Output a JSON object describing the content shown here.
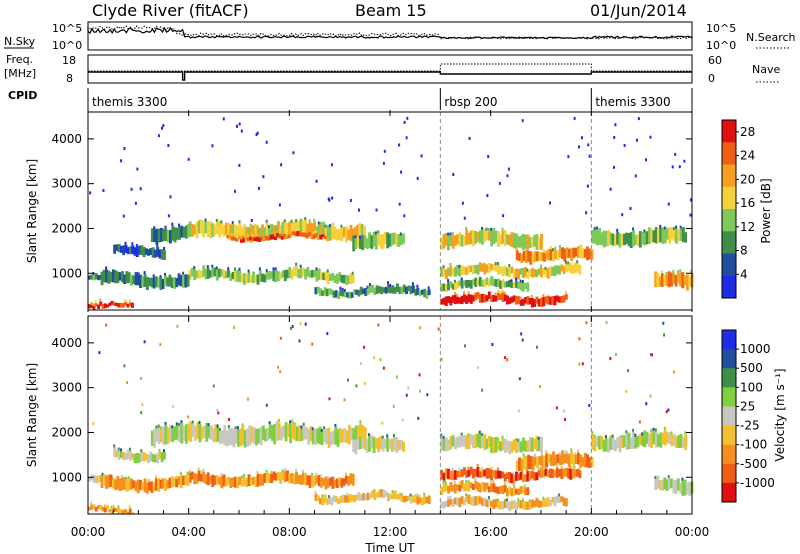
{
  "header": {
    "station": "Clyde River (fitACF)",
    "beam": "Beam 15",
    "date": "01/Jun/2014"
  },
  "top_panels": {
    "nsky_label": "N.Sky",
    "nsky_ticks": [
      "10^5",
      "10^0"
    ],
    "nsearch_ticks": [
      "10^5",
      "10^0"
    ],
    "nsearch_label": "N.Search",
    "freq_label_1": "Freq.",
    "freq_label_2": "[MHz]",
    "freq_ticks": [
      "18",
      "8"
    ],
    "nave_ticks": [
      "60",
      "0"
    ],
    "nave_label": "Nave",
    "cpid_label": "CPID",
    "cpid_segments": [
      {
        "label": "themis 3300",
        "start_hour": 0,
        "end_hour": 14
      },
      {
        "label": "rbsp 200",
        "start_hour": 14,
        "end_hour": 20
      },
      {
        "label": "themis 3300",
        "start_hour": 20,
        "end_hour": 24
      }
    ]
  },
  "time_axis": {
    "ticks": [
      "00:00",
      "04:00",
      "08:00",
      "12:00",
      "16:00",
      "20:00",
      "00:00"
    ],
    "label": "Time UT"
  },
  "chart_data": [
    {
      "type": "heatmap",
      "panel": "power",
      "ylabel": "Slant Range [km]",
      "yticks": [
        "1000",
        "2000",
        "3000",
        "4000"
      ],
      "ylim": [
        180,
        4600
      ],
      "xlim_hours": [
        0,
        24
      ],
      "colorbar": {
        "label": "Power [dB]",
        "ticks": [
          "4",
          "8",
          "12",
          "16",
          "20",
          "24",
          "28"
        ],
        "range": [
          0,
          30
        ],
        "colors": [
          "#1f2ce6",
          "#1f4f9e",
          "#3f8f4a",
          "#7fc85a",
          "#f5d23c",
          "#f5a01e",
          "#f06014",
          "#e01010"
        ]
      },
      "echo_bands": [
        {
          "t_start": 0.0,
          "t_end": 1.0,
          "range_center": 900,
          "range_width": 120,
          "level": 2
        },
        {
          "t_start": 0.0,
          "t_end": 1.8,
          "range_center": 250,
          "range_width": 100,
          "level": 7
        },
        {
          "t_start": 1.0,
          "t_end": 3.0,
          "range_center": 1500,
          "range_width": 200,
          "level": 1
        },
        {
          "t_start": 2.5,
          "t_end": 4.0,
          "range_center": 1900,
          "range_width": 300,
          "level": 2
        },
        {
          "t_start": 4.0,
          "t_end": 11.0,
          "range_center": 1950,
          "range_width": 320,
          "level": 4
        },
        {
          "t_start": 5.5,
          "t_end": 9.5,
          "range_center": 1800,
          "range_width": 100,
          "level": 6
        },
        {
          "t_start": 4.0,
          "t_end": 10.5,
          "range_center": 950,
          "range_width": 220,
          "level": 3
        },
        {
          "t_start": 0.5,
          "t_end": 4.0,
          "range_center": 850,
          "range_width": 260,
          "level": 2
        },
        {
          "t_start": 9.0,
          "t_end": 13.5,
          "range_center": 600,
          "range_width": 160,
          "level": 2
        },
        {
          "t_start": 10.5,
          "t_end": 12.5,
          "range_center": 1700,
          "range_width": 300,
          "level": 3
        },
        {
          "t_start": 14.0,
          "t_end": 18.0,
          "range_center": 1750,
          "range_width": 300,
          "level": 4
        },
        {
          "t_start": 17.0,
          "t_end": 20.0,
          "range_center": 1400,
          "range_width": 260,
          "level": 5
        },
        {
          "t_start": 14.0,
          "t_end": 19.5,
          "range_center": 1050,
          "range_width": 200,
          "level": 4
        },
        {
          "t_start": 14.0,
          "t_end": 17.5,
          "range_center": 750,
          "range_width": 180,
          "level": 3
        },
        {
          "t_start": 14.0,
          "t_end": 19.0,
          "range_center": 420,
          "range_width": 180,
          "level": 7
        },
        {
          "t_start": 20.0,
          "t_end": 23.7,
          "range_center": 1800,
          "range_width": 320,
          "level": 3
        },
        {
          "t_start": 22.5,
          "t_end": 24.0,
          "range_center": 800,
          "range_width": 300,
          "level": 5
        }
      ]
    },
    {
      "type": "heatmap",
      "panel": "velocity",
      "ylabel": "Slant Range [km]",
      "yticks": [
        "1000",
        "2000",
        "3000",
        "4000"
      ],
      "ylim": [
        180,
        4600
      ],
      "xlim_hours": [
        0,
        24
      ],
      "colorbar": {
        "label": "Velocity [m s⁻¹]",
        "ticks": [
          "1000",
          "500",
          "100",
          "25",
          "-25",
          "-100",
          "-500",
          "-1000"
        ],
        "colors": [
          "#1f2ce6",
          "#1f4f9e",
          "#3f8f4a",
          "#7fd040",
          "#c8c8c0",
          "#f5c030",
          "#f5901e",
          "#f06014",
          "#e01010"
        ]
      },
      "echo_bands": [
        {
          "t_start": 0.0,
          "t_end": 1.0,
          "range_center": 900,
          "range_width": 150,
          "level": 4
        },
        {
          "t_start": 0.0,
          "t_end": 1.8,
          "range_center": 250,
          "range_width": 100,
          "level": 6
        },
        {
          "t_start": 1.0,
          "t_end": 3.0,
          "range_center": 1500,
          "range_width": 200,
          "level": 4
        },
        {
          "t_start": 2.5,
          "t_end": 11.0,
          "range_center": 1950,
          "range_width": 380,
          "level": 4
        },
        {
          "t_start": 4.0,
          "t_end": 10.5,
          "range_center": 950,
          "range_width": 240,
          "level": 6
        },
        {
          "t_start": 0.5,
          "t_end": 4.0,
          "range_center": 850,
          "range_width": 260,
          "level": 6
        },
        {
          "t_start": 9.0,
          "t_end": 13.5,
          "range_center": 550,
          "range_width": 160,
          "level": 5
        },
        {
          "t_start": 10.5,
          "t_end": 12.5,
          "range_center": 1700,
          "range_width": 300,
          "level": 4
        },
        {
          "t_start": 14.0,
          "t_end": 18.0,
          "range_center": 1750,
          "range_width": 300,
          "level": 4
        },
        {
          "t_start": 17.0,
          "t_end": 20.0,
          "range_center": 1350,
          "range_width": 280,
          "level": 6
        },
        {
          "t_start": 14.0,
          "t_end": 19.5,
          "range_center": 1050,
          "range_width": 200,
          "level": 7
        },
        {
          "t_start": 14.0,
          "t_end": 17.5,
          "range_center": 750,
          "range_width": 180,
          "level": 6
        },
        {
          "t_start": 14.0,
          "t_end": 19.0,
          "range_center": 420,
          "range_width": 180,
          "level": 5
        },
        {
          "t_start": 20.0,
          "t_end": 23.7,
          "range_center": 1800,
          "range_width": 320,
          "level": 4
        },
        {
          "t_start": 22.5,
          "t_end": 24.0,
          "range_center": 800,
          "range_width": 300,
          "level": 4
        }
      ]
    }
  ]
}
